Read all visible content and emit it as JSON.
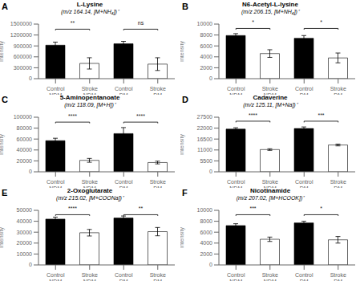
{
  "chart_data": [
    {
      "type": "bar",
      "label": "A",
      "title": "L-Lysine",
      "subtitle": "(m/z 164.14, [M+NH₄])⁺",
      "y_label": "Intensity",
      "categories": [
        "Control\nNDM",
        "Stroke\nNDM",
        "Control\nDM",
        "Stroke\nDM"
      ],
      "values": [
        920000,
        420000,
        960000,
        400000
      ],
      "errors": [
        85000,
        155000,
        65000,
        175000
      ],
      "colors": [
        "black",
        "white",
        "black",
        "white"
      ],
      "ylim": [
        0,
        1500000
      ],
      "yticks": [
        0,
        300000,
        600000,
        900000,
        1200000,
        1500000
      ],
      "grid": false,
      "annotations": [
        {
          "x1": "Control\nNDM",
          "x2": "Stroke\nNDM",
          "y": 1360000,
          "text": "**"
        },
        {
          "x1": "Control\nDM",
          "x2": "Stroke\nDM",
          "y": 1360000,
          "text": "ns"
        }
      ]
    },
    {
      "type": "bar",
      "label": "B",
      "title": "N6-Acetyl-L-lysine",
      "subtitle": "(m/z 206.15, [M+NH₄])⁺",
      "y_label": "Intensity",
      "categories": [
        "Control\nNDM",
        "Stroke\nNDM",
        "Control\nDM",
        "Stroke\nDM"
      ],
      "values": [
        7900,
        4600,
        7400,
        3800
      ],
      "errors": [
        350,
        700,
        500,
        900
      ],
      "colors": [
        "black",
        "white",
        "black",
        "white"
      ],
      "ylim": [
        0,
        10000
      ],
      "yticks": [
        0,
        2000,
        4000,
        6000,
        8000,
        10000
      ],
      "grid": false,
      "annotations": [
        {
          "x1": "Control\nNDM",
          "x2": "Stroke\nNDM",
          "y": 9200,
          "text": "*"
        },
        {
          "x1": "Control\nDM",
          "x2": "Stroke\nDM",
          "y": 9200,
          "text": "*"
        }
      ]
    },
    {
      "type": "bar",
      "label": "C",
      "title": "5-Aminopentanoate",
      "subtitle": "(m/z 118.09, [M+H])⁺",
      "y_label": "Intensity",
      "categories": [
        "Control\nNDM",
        "Stroke\nNDM",
        "Control\nDM",
        "Stroke\nDM"
      ],
      "values": [
        57000,
        21000,
        70000,
        17000
      ],
      "errors": [
        4500,
        3500,
        11000,
        2500
      ],
      "colors": [
        "black",
        "white",
        "black",
        "white"
      ],
      "ylim": [
        0,
        100000
      ],
      "yticks": [
        0,
        20000,
        40000,
        60000,
        80000,
        100000
      ],
      "grid": false,
      "annotations": [
        {
          "x1": "Control\nNDM",
          "x2": "Stroke\nNDM",
          "y": 91000,
          "text": "****"
        },
        {
          "x1": "Control\nDM",
          "x2": "Stroke\nDM",
          "y": 91000,
          "text": "****"
        }
      ]
    },
    {
      "type": "bar",
      "label": "D",
      "title": "Cadaverine",
      "subtitle": "(m/z 125.11, [M+Na])⁺",
      "y_label": "Intensity",
      "categories": [
        "Control\nNDM",
        "Stroke\nNDM",
        "Control\nDM",
        "Stroke\nDM"
      ],
      "values": [
        21500,
        11200,
        21800,
        13500
      ],
      "errors": [
        700,
        400,
        800,
        450
      ],
      "colors": [
        "black",
        "white",
        "black",
        "white"
      ],
      "ylim": [
        0,
        27500
      ],
      "yticks": [
        0,
        5500,
        11000,
        16500,
        22000,
        27500
      ],
      "grid": false,
      "annotations": [
        {
          "x1": "Control\nNDM",
          "x2": "Stroke\nNDM",
          "y": 25500,
          "text": "****"
        },
        {
          "x1": "Control\nDM",
          "x2": "Stroke\nDM",
          "y": 25500,
          "text": "***"
        }
      ]
    },
    {
      "type": "bar",
      "label": "E",
      "title": "2-Oxoglutarate",
      "subtitle": "(m/z 215.02, [M+COONa])⁺",
      "y_label": "Intensity",
      "categories": [
        "Control\nNDM",
        "Stroke\nNDM",
        "Control\nDM",
        "Stroke\nDM"
      ],
      "values": [
        42000,
        29500,
        43000,
        30500
      ],
      "errors": [
        1800,
        3000,
        1800,
        3800
      ],
      "colors": [
        "black",
        "white",
        "black",
        "white"
      ],
      "ylim": [
        0,
        50000
      ],
      "yticks": [
        0,
        10000,
        20000,
        30000,
        40000,
        50000
      ],
      "grid": false,
      "annotations": [
        {
          "x1": "Control\nNDM",
          "x2": "Stroke\nNDM",
          "y": 46000,
          "text": "****"
        },
        {
          "x1": "Control\nDM",
          "x2": "Stroke\nDM",
          "y": 46000,
          "text": "**"
        }
      ]
    },
    {
      "type": "bar",
      "label": "F",
      "title": "Nicotinamide",
      "subtitle": "(m/z 207.02, [M+HCOOK])⁺",
      "y_label": "Intensity",
      "categories": [
        "Control\nNDM",
        "Stroke\nNDM",
        "Control\nDM",
        "Stroke\nDM"
      ],
      "values": [
        7200,
        4700,
        7700,
        4600
      ],
      "errors": [
        350,
        400,
        300,
        600
      ],
      "colors": [
        "black",
        "white",
        "black",
        "white"
      ],
      "ylim": [
        0,
        10000
      ],
      "yticks": [
        0,
        2000,
        4000,
        6000,
        8000,
        10000
      ],
      "grid": false,
      "annotations": [
        {
          "x1": "Control\nNDM",
          "x2": "Stroke\nNDM",
          "y": 9200,
          "text": "***"
        },
        {
          "x1": "Control\nDM",
          "x2": "Stroke\nDM",
          "y": 9200,
          "text": "*"
        }
      ]
    }
  ]
}
